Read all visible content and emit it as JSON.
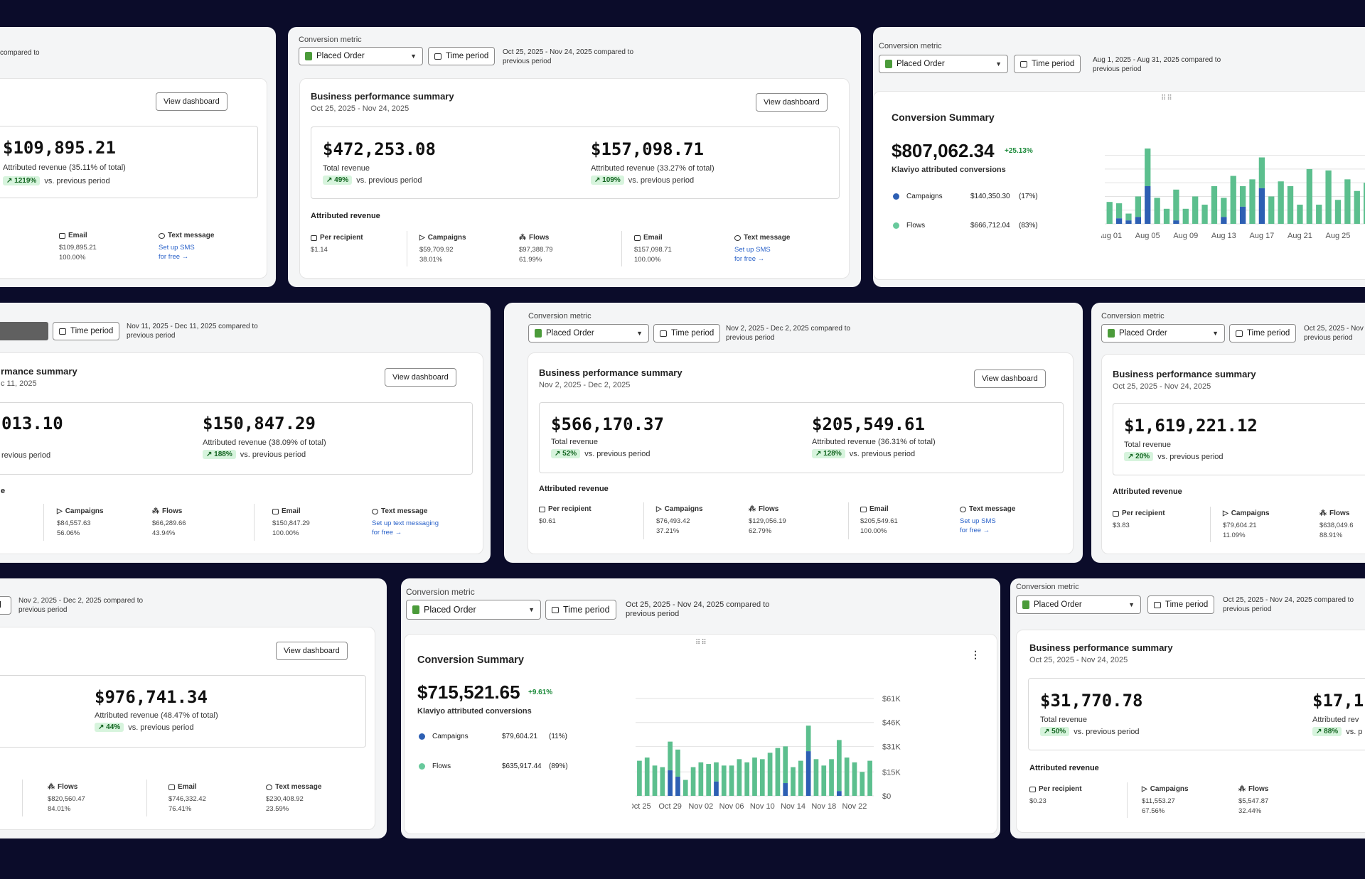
{
  "common": {
    "conversion_metric_label": "Conversion metric",
    "placed_order": "Placed Order",
    "time_period": "Time period",
    "view_dashboard": "View dashboard",
    "vs_prev": "vs. previous period",
    "attributed_revenue_heading": "Attributed revenue",
    "per_recipient": "Per recipient",
    "campaigns": "Campaigns",
    "flows": "Flows",
    "email": "Email",
    "text_message": "Text message",
    "bps_title": "Business performance summary",
    "total_revenue": "Total revenue",
    "conv_summary": "Conversion Summary",
    "klaviyo_conv": "Klaviyo attributed conversions",
    "for_free": "for free"
  },
  "c1": {
    "range": "compared to",
    "attributed_value": "$109,895.21",
    "attributed_label": "Attributed revenue (35.11% of total)",
    "pct": "1219%",
    "email_value": "$109,895.21",
    "email_pct": "100.00%",
    "sms_link": "Set up SMS"
  },
  "c2": {
    "range_line1": "Oct 25, 2025 - Nov 24, 2025 compared to",
    "range_line2": "previous period",
    "subtitle": "Oct 25, 2025 - Nov 24, 2025",
    "total_value": "$472,253.08",
    "total_pct": "49%",
    "attributed_value": "$157,098.71",
    "attributed_label": "Attributed revenue (33.27% of total)",
    "attributed_pct": "109%",
    "per_recipient": "$1.14",
    "campaigns_value": "$59,709.92",
    "campaigns_pct": "38.01%",
    "flows_value": "$97,388.79",
    "flows_pct": "61.99%",
    "email_value": "$157,098.71",
    "email_pct": "100.00%",
    "sms_link": "Set up SMS"
  },
  "c3": {
    "range_line1": "Aug 1, 2025 - Aug 31, 2025 compared to",
    "range_line2": "previous period",
    "value": "$807,062.34",
    "change": "+25.13%",
    "campaigns_value": "$140,350.30",
    "campaigns_pct": "(17%)",
    "flows_value": "$666,712.04",
    "flows_pct": "(83%)",
    "x_labels": [
      "Aug 01",
      "Aug 05",
      "Aug 09",
      "Aug 13",
      "Aug 17",
      "Aug 21",
      "Aug 25",
      "Aug"
    ]
  },
  "c4": {
    "range_line1": "Nov 11, 2025 - Dec 11, 2025 compared to",
    "range_line2": "previous period",
    "title_frag": "rmance summary",
    "subtitle_frag": "c 11, 2025",
    "total_frag": "013.10",
    "prev_frag": "revious period",
    "attributed_value": "$150,847.29",
    "attributed_label": "Attributed revenue (38.09% of total)",
    "attributed_pct": "188%",
    "section_frag": "e",
    "campaigns_value": "$84,557.63",
    "campaigns_pct": "56.06%",
    "flows_value": "$66,289.66",
    "flows_pct": "43.94%",
    "email_value": "$150,847.29",
    "email_pct": "100.00%",
    "sms_link": "Set up text messaging"
  },
  "c5": {
    "range_line1": "Nov 2, 2025 - Dec 2, 2025 compared to",
    "range_line2": "previous period",
    "subtitle": "Nov 2, 2025 - Dec 2, 2025",
    "total_value": "$566,170.37",
    "total_pct": "52%",
    "attributed_value": "$205,549.61",
    "attributed_label": "Attributed revenue (36.31% of total)",
    "attributed_pct": "128%",
    "per_recipient": "$0.61",
    "campaigns_value": "$76,493.42",
    "campaigns_pct": "37.21%",
    "flows_value": "$129,056.19",
    "flows_pct": "62.79%",
    "email_value": "$205,549.61",
    "email_pct": "100.00%",
    "sms_link": "Set up SMS"
  },
  "c6": {
    "range_line1": "Oct 25, 2025 - Nov 2",
    "range_line2": "previous period",
    "subtitle": "Oct 25, 2025 - Nov 24, 2025",
    "total_value": "$1,619,221.12",
    "total_pct": "20%",
    "per_recipient": "$3.83",
    "campaigns_value": "$79,604.21",
    "campaigns_pct": "11.09%",
    "flows_value": "$638,049.6",
    "flows_pct": "88.91%"
  },
  "c7": {
    "tp_frag": "od",
    "range_line1": "Nov 2, 2025 - Dec 2, 2025 compared to",
    "range_line2": "previous period",
    "attributed_value": "$976,741.34",
    "attributed_label": "Attributed revenue (48.47% of total)",
    "attributed_pct": "44%",
    "flows_value": "$820,560.47",
    "flows_pct": "84.01%",
    "email_value": "$746,332.42",
    "email_pct": "76.41%",
    "text_value": "$230,408.92",
    "text_pct": "23.59%"
  },
  "c8": {
    "range_line1": "Oct 25, 2025 - Nov 24, 2025 compared to",
    "range_line2": "previous period",
    "value": "$715,521.65",
    "change": "+9.61%",
    "campaigns_value": "$79,604.21",
    "campaigns_pct": "(11%)",
    "flows_value": "$635,917.44",
    "flows_pct": "(89%)",
    "y_labels": [
      "$61K",
      "$46K",
      "$31K",
      "$15K",
      "$0"
    ],
    "x_labels": [
      "Oct 25",
      "Oct 29",
      "Nov 02",
      "Nov 06",
      "Nov 10",
      "Nov 14",
      "Nov 18",
      "Nov 22"
    ]
  },
  "c9": {
    "range_line1": "Oct 25, 2025 - Nov 24, 2025 compared to",
    "range_line2": "previous period",
    "subtitle": "Oct 25, 2025 - Nov 24, 2025",
    "total_value": "$31,770.78",
    "total_pct": "50%",
    "attributed_frag": "$17,1",
    "attributed_label_frag": "Attributed rev",
    "attributed_pct": "88%",
    "prev_frag": "vs. p",
    "per_recipient": "$0.23",
    "campaigns_value": "$11,553.27",
    "campaigns_pct": "67.56%",
    "flows_value": "$5,547.87",
    "flows_pct": "32.44%"
  },
  "chart_data": [
    {
      "type": "bar",
      "title": "Conversion Summary",
      "categories": [
        "Aug 01",
        "Aug 02",
        "Aug 03",
        "Aug 04",
        "Aug 05",
        "Aug 06",
        "Aug 07",
        "Aug 08",
        "Aug 09",
        "Aug 10",
        "Aug 11",
        "Aug 12",
        "Aug 13",
        "Aug 14",
        "Aug 15",
        "Aug 16",
        "Aug 17",
        "Aug 18",
        "Aug 19",
        "Aug 20",
        "Aug 21",
        "Aug 22",
        "Aug 23",
        "Aug 24",
        "Aug 25",
        "Aug 26",
        "Aug 27",
        "Aug 28",
        "Aug 29",
        "Aug 30",
        "Aug 31"
      ],
      "series": [
        {
          "name": "Campaigns",
          "values": [
            0,
            8,
            5,
            10,
            55,
            0,
            0,
            5,
            0,
            0,
            0,
            0,
            10,
            0,
            25,
            0,
            52,
            0,
            0,
            0,
            0,
            0,
            0,
            0,
            0,
            0,
            0,
            0,
            50,
            0,
            0
          ]
        },
        {
          "name": "Flows",
          "values": [
            32,
            22,
            10,
            30,
            55,
            38,
            22,
            45,
            22,
            40,
            28,
            55,
            28,
            70,
            30,
            65,
            45,
            40,
            62,
            55,
            28,
            80,
            28,
            78,
            35,
            65,
            48,
            60,
            42,
            65,
            35
          ]
        }
      ]
    },
    {
      "type": "bar",
      "title": "Conversion Summary",
      "categories": [
        "Oct 25",
        "Oct 26",
        "Oct 27",
        "Oct 28",
        "Oct 29",
        "Oct 30",
        "Oct 31",
        "Nov 01",
        "Nov 02",
        "Nov 03",
        "Nov 04",
        "Nov 05",
        "Nov 06",
        "Nov 07",
        "Nov 08",
        "Nov 09",
        "Nov 10",
        "Nov 11",
        "Nov 12",
        "Nov 13",
        "Nov 14",
        "Nov 15",
        "Nov 16",
        "Nov 17",
        "Nov 18",
        "Nov 19",
        "Nov 20",
        "Nov 21",
        "Nov 22",
        "Nov 23",
        "Nov 24"
      ],
      "series": [
        {
          "name": "Campaigns",
          "values": [
            0,
            0,
            0,
            0,
            16,
            12,
            0,
            0,
            0,
            0,
            9,
            0,
            0,
            0,
            0,
            0,
            0,
            0,
            0,
            8,
            0,
            0,
            28,
            0,
            0,
            0,
            3,
            0,
            0,
            0,
            0
          ]
        },
        {
          "name": "Flows",
          "values": [
            22,
            24,
            19,
            18,
            18,
            17,
            10,
            18,
            21,
            20,
            12,
            19,
            19,
            23,
            21,
            24,
            23,
            27,
            30,
            23,
            18,
            22,
            16,
            23,
            19,
            23,
            32,
            24,
            21,
            15,
            22
          ]
        }
      ],
      "ylim": [
        0,
        61000
      ]
    }
  ]
}
